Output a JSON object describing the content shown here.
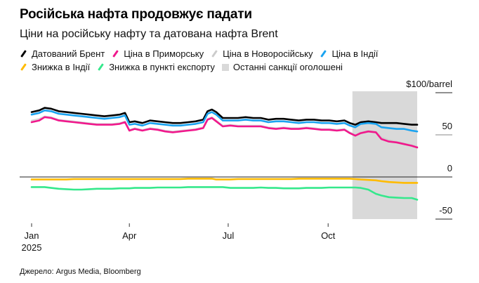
{
  "chart_data": {
    "type": "line",
    "title": "Російська нафта продовжує падати",
    "subtitle": "Ціни на російську нафту та датована нафта Brent",
    "ylabel": "$100/barrel",
    "ylim": [
      -50,
      100
    ],
    "yticks": [
      {
        "value": 100,
        "label": "$100/barrel"
      },
      {
        "value": 50,
        "label": "50"
      },
      {
        "value": 0,
        "label": "0"
      },
      {
        "value": -50,
        "label": "-50"
      }
    ],
    "xlim_days": [
      0,
      355
    ],
    "xticks": [
      {
        "day": 0,
        "label": "Jan",
        "sublabel": "2025"
      },
      {
        "day": 90,
        "label": "Apr",
        "sublabel": ""
      },
      {
        "day": 181,
        "label": "Jul",
        "sublabel": ""
      },
      {
        "day": 273,
        "label": "Oct",
        "sublabel": ""
      }
    ],
    "shaded_region": {
      "label": "Останні санкції оголошені",
      "start_day": 296,
      "end_day": 355,
      "color": "#d9d9d9"
    },
    "x_days": [
      0,
      7,
      12,
      18,
      25,
      32,
      39,
      46,
      53,
      60,
      67,
      74,
      81,
      86,
      90,
      95,
      102,
      109,
      116,
      123,
      130,
      137,
      144,
      151,
      158,
      162,
      166,
      170,
      176,
      183,
      190,
      197,
      204,
      211,
      218,
      225,
      232,
      239,
      246,
      253,
      260,
      267,
      274,
      281,
      288,
      293,
      298,
      303,
      310,
      317,
      322,
      329,
      336,
      343,
      350,
      355
    ],
    "series": [
      {
        "name": "Датований Брент",
        "color": "#000000",
        "values": [
          77,
          79,
          82,
          81,
          78,
          77,
          76,
          75,
          74,
          73,
          72,
          73,
          74,
          76,
          65,
          66,
          64,
          67,
          66,
          65,
          64,
          64,
          65,
          66,
          68,
          78,
          80,
          77,
          70,
          70,
          70,
          71,
          70,
          70,
          68,
          69,
          69,
          68,
          67,
          68,
          68,
          67,
          67,
          66,
          67,
          64,
          62,
          65,
          66,
          65,
          64,
          64,
          64,
          63,
          62,
          62
        ]
      },
      {
        "name": "Ціна в Приморську",
        "color": "#f0188c",
        "values": [
          65,
          67,
          71,
          70,
          67,
          66,
          65,
          64,
          63,
          62,
          62,
          62,
          63,
          65,
          55,
          57,
          55,
          57,
          56,
          54,
          53,
          54,
          55,
          56,
          58,
          68,
          70,
          66,
          60,
          61,
          60,
          60,
          60,
          60,
          58,
          57,
          58,
          57,
          57,
          58,
          57,
          56,
          56,
          55,
          56,
          52,
          49,
          52,
          54,
          53,
          45,
          42,
          41,
          39,
          37,
          35
        ]
      },
      {
        "name": "Ціна в Новоросійську",
        "color": "#cccccc",
        "values": [
          67,
          69,
          72,
          71,
          68,
          67,
          66,
          65,
          64,
          63,
          63,
          63,
          64,
          66,
          56,
          58,
          56,
          58,
          57,
          55,
          54,
          55,
          56,
          57,
          59,
          69,
          71,
          67,
          61,
          62,
          61,
          61,
          61,
          61,
          59,
          58,
          59,
          58,
          58,
          59,
          58,
          57,
          57,
          56,
          57,
          53,
          50,
          53,
          55,
          54,
          47,
          44,
          42,
          40,
          38,
          36
        ]
      },
      {
        "name": "Ціна в Індії",
        "color": "#1aa3f0",
        "values": [
          74,
          76,
          79,
          78,
          75,
          74,
          73,
          72,
          71,
          70,
          69,
          70,
          71,
          73,
          62,
          63,
          61,
          64,
          63,
          62,
          61,
          61,
          62,
          63,
          65,
          75,
          77,
          74,
          67,
          67,
          67,
          68,
          67,
          67,
          65,
          66,
          66,
          65,
          64,
          65,
          65,
          64,
          64,
          63,
          64,
          61,
          59,
          63,
          64,
          63,
          59,
          58,
          57,
          57,
          55,
          54
        ]
      },
      {
        "name": "Знижка в Індії",
        "color": "#ffbb00",
        "values": [
          -3,
          -3,
          -3,
          -3,
          -3,
          -3,
          -2.5,
          -2.5,
          -2.5,
          -2.5,
          -2.5,
          -2.5,
          -2.5,
          -2.5,
          -2.5,
          -2.5,
          -2.5,
          -2.5,
          -2.5,
          -2.5,
          -2.5,
          -2.5,
          -2,
          -2,
          -2,
          -2,
          -2,
          -3,
          -3,
          -3,
          -2.5,
          -2.5,
          -2.5,
          -2.5,
          -2.5,
          -2.5,
          -2.5,
          -2.5,
          -2,
          -2,
          -2,
          -2,
          -2,
          -2,
          -2,
          -2,
          -2.5,
          -3,
          -3.5,
          -4,
          -5,
          -6,
          -6.5,
          -7,
          -7,
          -7
        ]
      },
      {
        "name": "Знижка в пункті експорту",
        "color": "#35e88c",
        "values": [
          -12,
          -12,
          -12,
          -13,
          -14,
          -14.5,
          -15,
          -15,
          -14.5,
          -14,
          -14,
          -14,
          -13.5,
          -13.5,
          -13.5,
          -13,
          -13,
          -13,
          -12.5,
          -12.5,
          -12.5,
          -12.5,
          -12,
          -12,
          -12,
          -12,
          -12,
          -12,
          -12,
          -13,
          -13,
          -13,
          -13,
          -12.5,
          -13,
          -13,
          -13.5,
          -13.5,
          -13.5,
          -13,
          -13,
          -13,
          -12.5,
          -12.5,
          -12.5,
          -12.5,
          -12.5,
          -13,
          -15,
          -20,
          -22,
          -24,
          -24.5,
          -25,
          -25,
          -27
        ]
      }
    ]
  },
  "legend": {
    "items": [
      {
        "label": "Датований Брент",
        "color": "#000000",
        "kind": "line"
      },
      {
        "label": "Ціна в Приморську",
        "color": "#f0188c",
        "kind": "line"
      },
      {
        "label": "Ціна в Новоросійську",
        "color": "#cccccc",
        "kind": "line"
      },
      {
        "label": "Ціна в Індії",
        "color": "#1aa3f0",
        "kind": "line"
      },
      {
        "label": "Знижка в Індії",
        "color": "#ffbb00",
        "kind": "line"
      },
      {
        "label": "Знижка в пункті експорту",
        "color": "#35e88c",
        "kind": "line"
      },
      {
        "label": "Останні санкції оголошені",
        "color": "#d9d9d9",
        "kind": "box"
      }
    ]
  },
  "source": "Джерело: Argus Media, Bloomberg"
}
